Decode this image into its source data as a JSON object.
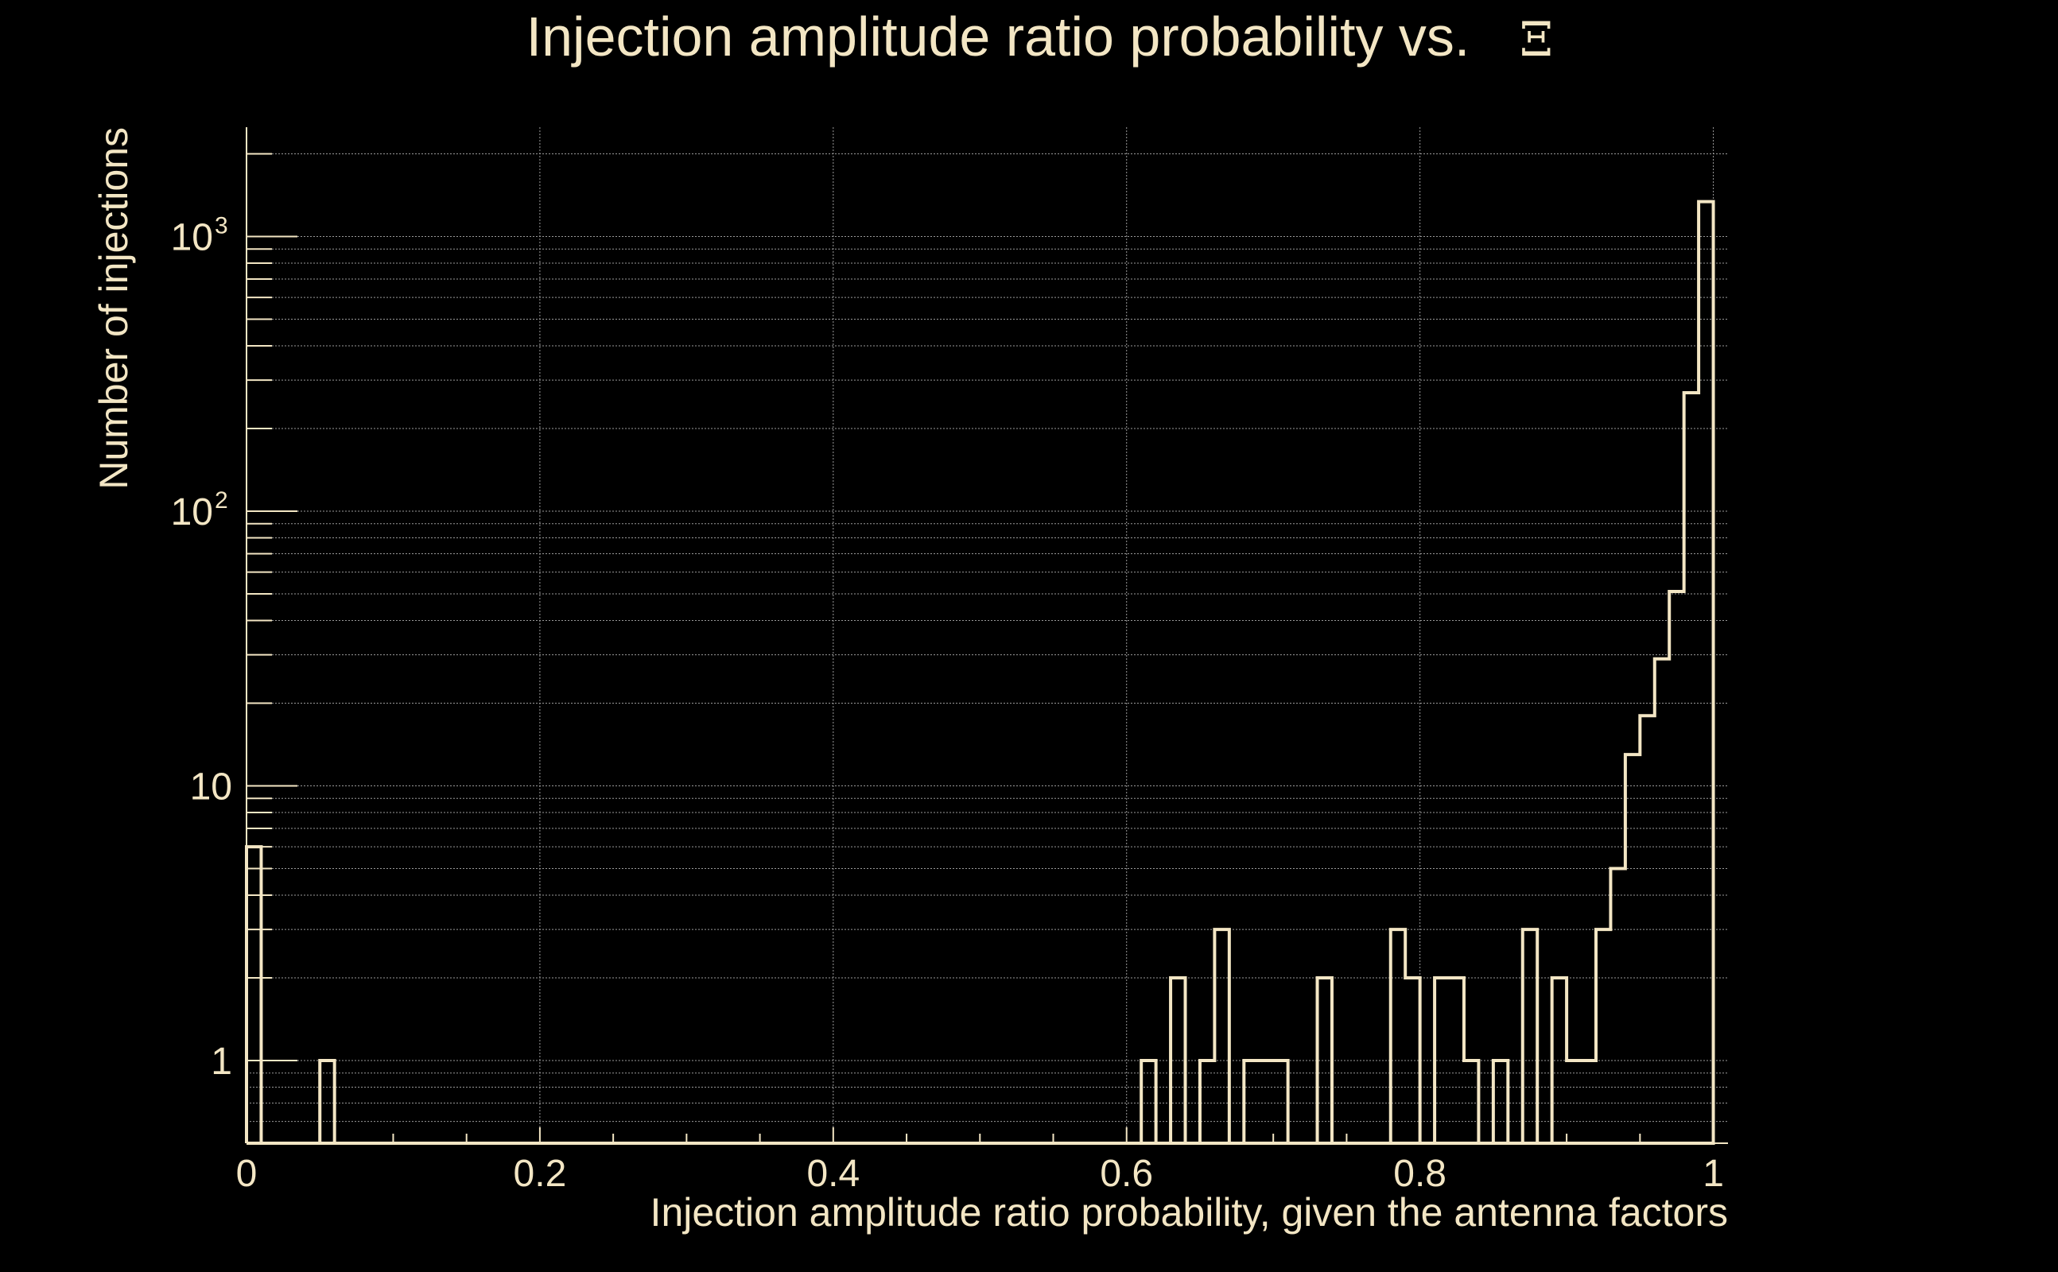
{
  "colors": {
    "background": "#000000",
    "foreground": "#f3e6c4",
    "grid": "#9a9a9a"
  },
  "chart_data": {
    "type": "histogram",
    "title": "Injection amplitude ratio probability vs.",
    "title_symbol": "Ξ",
    "xlabel": "Injection amplitude ratio probability, given the antenna factors",
    "ylabel": "Number of injections",
    "xlim": [
      0,
      1.01
    ],
    "ylim": [
      0.5,
      2500
    ],
    "yscale": "log",
    "grid": true,
    "x_ticks": [
      {
        "value": 0,
        "label": "0"
      },
      {
        "value": 0.2,
        "label": "0.2"
      },
      {
        "value": 0.4,
        "label": "0.4"
      },
      {
        "value": 0.6,
        "label": "0.6"
      },
      {
        "value": 0.8,
        "label": "0.8"
      },
      {
        "value": 1,
        "label": "1"
      }
    ],
    "y_ticks": [
      {
        "value": 1,
        "base": "1",
        "exp": ""
      },
      {
        "value": 10,
        "base": "10",
        "exp": ""
      },
      {
        "value": 100,
        "base": "10",
        "exp": "2"
      },
      {
        "value": 1000,
        "base": "10",
        "exp": "3"
      }
    ],
    "bin_width": 0.01,
    "bins": [
      {
        "x": 0.0,
        "count": 6
      },
      {
        "x": 0.05,
        "count": 1
      },
      {
        "x": 0.61,
        "count": 1
      },
      {
        "x": 0.63,
        "count": 2
      },
      {
        "x": 0.65,
        "count": 1
      },
      {
        "x": 0.66,
        "count": 3
      },
      {
        "x": 0.68,
        "count": 1
      },
      {
        "x": 0.69,
        "count": 1
      },
      {
        "x": 0.7,
        "count": 1
      },
      {
        "x": 0.73,
        "count": 2
      },
      {
        "x": 0.78,
        "count": 3
      },
      {
        "x": 0.79,
        "count": 2
      },
      {
        "x": 0.81,
        "count": 2
      },
      {
        "x": 0.82,
        "count": 2
      },
      {
        "x": 0.83,
        "count": 1
      },
      {
        "x": 0.85,
        "count": 1
      },
      {
        "x": 0.87,
        "count": 3
      },
      {
        "x": 0.89,
        "count": 2
      },
      {
        "x": 0.9,
        "count": 1
      },
      {
        "x": 0.91,
        "count": 1
      },
      {
        "x": 0.92,
        "count": 3
      },
      {
        "x": 0.93,
        "count": 5
      },
      {
        "x": 0.94,
        "count": 13
      },
      {
        "x": 0.95,
        "count": 18
      },
      {
        "x": 0.96,
        "count": 29
      },
      {
        "x": 0.97,
        "count": 51
      },
      {
        "x": 0.98,
        "count": 270
      },
      {
        "x": 0.99,
        "count": 1340
      }
    ]
  }
}
